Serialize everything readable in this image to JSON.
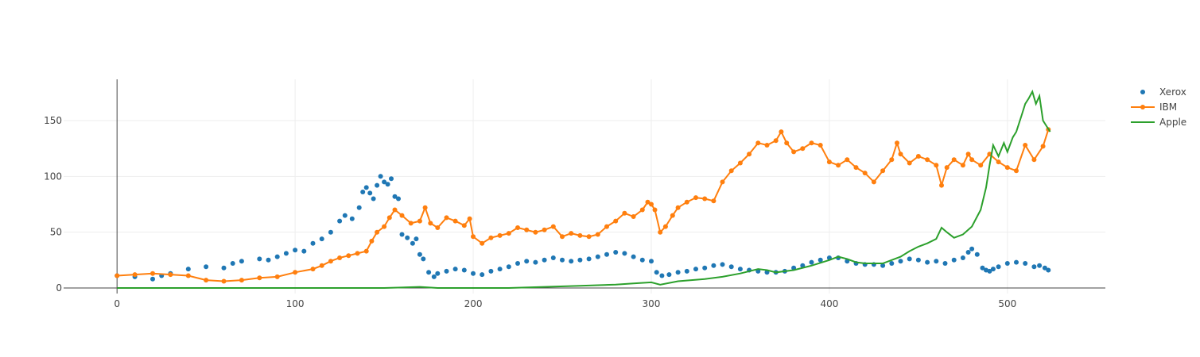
{
  "chart_data": {
    "type": "line",
    "title": "",
    "xlabel": "",
    "ylabel": "",
    "xlim": [
      -30,
      555
    ],
    "ylim": [
      -5,
      187
    ],
    "x_ticks": [
      0,
      100,
      200,
      300,
      400,
      500
    ],
    "y_ticks": [
      0,
      50,
      100,
      150
    ],
    "x_tick_labels": [
      "0",
      "100",
      "200",
      "300",
      "400",
      "500"
    ],
    "y_tick_labels": [
      "0",
      "50",
      "100",
      "150"
    ],
    "grid": true,
    "legend_position": "top-right",
    "series": [
      {
        "name": "Xerox",
        "mode": "markers",
        "color": "#1f77b4",
        "points": [
          [
            0,
            11
          ],
          [
            10,
            10
          ],
          [
            20,
            8
          ],
          [
            25,
            11
          ],
          [
            30,
            13
          ],
          [
            40,
            17
          ],
          [
            50,
            19
          ],
          [
            60,
            18
          ],
          [
            65,
            22
          ],
          [
            70,
            24
          ],
          [
            80,
            26
          ],
          [
            85,
            25
          ],
          [
            90,
            28
          ],
          [
            95,
            31
          ],
          [
            100,
            34
          ],
          [
            105,
            33
          ],
          [
            110,
            40
          ],
          [
            115,
            44
          ],
          [
            120,
            50
          ],
          [
            125,
            60
          ],
          [
            128,
            65
          ],
          [
            132,
            62
          ],
          [
            136,
            72
          ],
          [
            138,
            86
          ],
          [
            140,
            90
          ],
          [
            142,
            85
          ],
          [
            144,
            80
          ],
          [
            146,
            92
          ],
          [
            148,
            100
          ],
          [
            150,
            95
          ],
          [
            152,
            93
          ],
          [
            154,
            98
          ],
          [
            156,
            82
          ],
          [
            158,
            80
          ],
          [
            160,
            48
          ],
          [
            163,
            45
          ],
          [
            166,
            40
          ],
          [
            168,
            44
          ],
          [
            170,
            30
          ],
          [
            172,
            26
          ],
          [
            175,
            14
          ],
          [
            178,
            10
          ],
          [
            180,
            13
          ],
          [
            185,
            15
          ],
          [
            190,
            17
          ],
          [
            195,
            16
          ],
          [
            200,
            13
          ],
          [
            205,
            12
          ],
          [
            210,
            15
          ],
          [
            215,
            17
          ],
          [
            220,
            19
          ],
          [
            225,
            22
          ],
          [
            230,
            24
          ],
          [
            235,
            23
          ],
          [
            240,
            25
          ],
          [
            245,
            27
          ],
          [
            250,
            25
          ],
          [
            255,
            24
          ],
          [
            260,
            25
          ],
          [
            265,
            26
          ],
          [
            270,
            28
          ],
          [
            275,
            30
          ],
          [
            280,
            32
          ],
          [
            285,
            31
          ],
          [
            290,
            28
          ],
          [
            295,
            25
          ],
          [
            300,
            24
          ],
          [
            303,
            14
          ],
          [
            306,
            11
          ],
          [
            310,
            12
          ],
          [
            315,
            14
          ],
          [
            320,
            15
          ],
          [
            325,
            17
          ],
          [
            330,
            18
          ],
          [
            335,
            20
          ],
          [
            340,
            21
          ],
          [
            345,
            19
          ],
          [
            350,
            17
          ],
          [
            355,
            16
          ],
          [
            360,
            15
          ],
          [
            365,
            14
          ],
          [
            370,
            14
          ],
          [
            375,
            15
          ],
          [
            380,
            18
          ],
          [
            385,
            20
          ],
          [
            390,
            23
          ],
          [
            395,
            25
          ],
          [
            400,
            27
          ],
          [
            405,
            27
          ],
          [
            410,
            24
          ],
          [
            415,
            22
          ],
          [
            420,
            21
          ],
          [
            425,
            21
          ],
          [
            430,
            20
          ],
          [
            435,
            22
          ],
          [
            440,
            24
          ],
          [
            445,
            26
          ],
          [
            450,
            25
          ],
          [
            455,
            23
          ],
          [
            460,
            24
          ],
          [
            465,
            22
          ],
          [
            470,
            25
          ],
          [
            475,
            27
          ],
          [
            478,
            32
          ],
          [
            480,
            35
          ],
          [
            483,
            30
          ],
          [
            486,
            18
          ],
          [
            488,
            16
          ],
          [
            490,
            15
          ],
          [
            492,
            17
          ],
          [
            495,
            19
          ],
          [
            500,
            22
          ],
          [
            505,
            23
          ],
          [
            510,
            22
          ],
          [
            515,
            19
          ],
          [
            518,
            20
          ],
          [
            521,
            18
          ],
          [
            523,
            16
          ]
        ]
      },
      {
        "name": "IBM",
        "mode": "lines+markers",
        "color": "#ff7f0e",
        "points": [
          [
            0,
            11
          ],
          [
            10,
            12
          ],
          [
            20,
            13
          ],
          [
            30,
            12
          ],
          [
            40,
            11
          ],
          [
            50,
            7
          ],
          [
            60,
            6
          ],
          [
            70,
            7
          ],
          [
            80,
            9
          ],
          [
            90,
            10
          ],
          [
            100,
            14
          ],
          [
            110,
            17
          ],
          [
            115,
            20
          ],
          [
            120,
            24
          ],
          [
            125,
            27
          ],
          [
            130,
            29
          ],
          [
            135,
            31
          ],
          [
            140,
            33
          ],
          [
            143,
            42
          ],
          [
            146,
            50
          ],
          [
            150,
            55
          ],
          [
            153,
            63
          ],
          [
            156,
            70
          ],
          [
            160,
            65
          ],
          [
            165,
            58
          ],
          [
            170,
            60
          ],
          [
            173,
            72
          ],
          [
            176,
            58
          ],
          [
            180,
            54
          ],
          [
            185,
            63
          ],
          [
            190,
            60
          ],
          [
            195,
            56
          ],
          [
            198,
            62
          ],
          [
            200,
            46
          ],
          [
            205,
            40
          ],
          [
            210,
            45
          ],
          [
            215,
            47
          ],
          [
            220,
            49
          ],
          [
            225,
            54
          ],
          [
            230,
            52
          ],
          [
            235,
            50
          ],
          [
            240,
            52
          ],
          [
            245,
            55
          ],
          [
            250,
            46
          ],
          [
            255,
            49
          ],
          [
            260,
            47
          ],
          [
            265,
            46
          ],
          [
            270,
            48
          ],
          [
            275,
            55
          ],
          [
            280,
            60
          ],
          [
            285,
            67
          ],
          [
            290,
            64
          ],
          [
            295,
            70
          ],
          [
            298,
            77
          ],
          [
            300,
            75
          ],
          [
            302,
            70
          ],
          [
            305,
            50
          ],
          [
            308,
            55
          ],
          [
            312,
            65
          ],
          [
            315,
            72
          ],
          [
            320,
            77
          ],
          [
            325,
            81
          ],
          [
            330,
            80
          ],
          [
            335,
            78
          ],
          [
            340,
            95
          ],
          [
            345,
            105
          ],
          [
            350,
            112
          ],
          [
            355,
            120
          ],
          [
            360,
            130
          ],
          [
            365,
            128
          ],
          [
            370,
            132
          ],
          [
            373,
            140
          ],
          [
            376,
            130
          ],
          [
            380,
            122
          ],
          [
            385,
            125
          ],
          [
            390,
            130
          ],
          [
            395,
            128
          ],
          [
            400,
            113
          ],
          [
            405,
            110
          ],
          [
            410,
            115
          ],
          [
            415,
            108
          ],
          [
            420,
            103
          ],
          [
            425,
            95
          ],
          [
            430,
            105
          ],
          [
            435,
            115
          ],
          [
            438,
            130
          ],
          [
            440,
            120
          ],
          [
            445,
            112
          ],
          [
            450,
            118
          ],
          [
            455,
            115
          ],
          [
            460,
            110
          ],
          [
            463,
            92
          ],
          [
            466,
            108
          ],
          [
            470,
            115
          ],
          [
            475,
            110
          ],
          [
            478,
            120
          ],
          [
            480,
            115
          ],
          [
            485,
            110
          ],
          [
            490,
            120
          ],
          [
            495,
            113
          ],
          [
            500,
            108
          ],
          [
            505,
            105
          ],
          [
            510,
            128
          ],
          [
            515,
            115
          ],
          [
            520,
            127
          ],
          [
            523,
            142
          ]
        ]
      },
      {
        "name": "Apple",
        "mode": "lines",
        "color": "#2ca02c",
        "points": [
          [
            0,
            0
          ],
          [
            100,
            0
          ],
          [
            150,
            0
          ],
          [
            170,
            1
          ],
          [
            180,
            0
          ],
          [
            220,
            0
          ],
          [
            240,
            1
          ],
          [
            260,
            2
          ],
          [
            280,
            3
          ],
          [
            290,
            4
          ],
          [
            300,
            5
          ],
          [
            305,
            3
          ],
          [
            315,
            6
          ],
          [
            330,
            8
          ],
          [
            340,
            10
          ],
          [
            350,
            13
          ],
          [
            360,
            17
          ],
          [
            365,
            16
          ],
          [
            370,
            14
          ],
          [
            380,
            16
          ],
          [
            390,
            20
          ],
          [
            400,
            25
          ],
          [
            405,
            28
          ],
          [
            410,
            26
          ],
          [
            415,
            23
          ],
          [
            420,
            22
          ],
          [
            430,
            22
          ],
          [
            435,
            25
          ],
          [
            440,
            28
          ],
          [
            445,
            33
          ],
          [
            450,
            37
          ],
          [
            455,
            40
          ],
          [
            460,
            44
          ],
          [
            463,
            54
          ],
          [
            466,
            50
          ],
          [
            470,
            45
          ],
          [
            475,
            48
          ],
          [
            480,
            55
          ],
          [
            485,
            70
          ],
          [
            488,
            90
          ],
          [
            490,
            110
          ],
          [
            492,
            128
          ],
          [
            495,
            118
          ],
          [
            498,
            130
          ],
          [
            500,
            122
          ],
          [
            503,
            135
          ],
          [
            505,
            140
          ],
          [
            508,
            155
          ],
          [
            510,
            165
          ],
          [
            512,
            170
          ],
          [
            514,
            176
          ],
          [
            516,
            165
          ],
          [
            518,
            172
          ],
          [
            520,
            150
          ],
          [
            522,
            145
          ],
          [
            524,
            140
          ]
        ]
      }
    ]
  }
}
